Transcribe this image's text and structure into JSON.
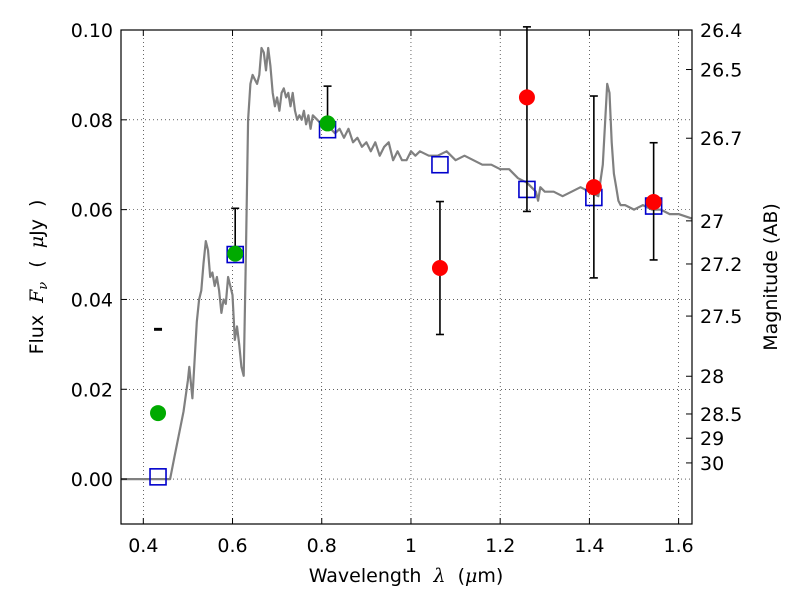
{
  "chart_data": {
    "type": "scatter",
    "title": "",
    "xlabel": "Wavelength",
    "xlabel_symbol": "λ",
    "xlabel_unit_open": "(",
    "xlabel_unit_mu": "μ",
    "xlabel_unit_rest": "m)",
    "ylabel_prefix": "Flux",
    "ylabel_symbol": "F",
    "ylabel_subscript": "ν",
    "ylabel_unit_open": "(",
    "ylabel_unit_mu": "μ",
    "ylabel_unit_rest": "Jy",
    "ylabel_unit_close": ")",
    "y2label": "Magnitude (AB)",
    "xlim": [
      0.35,
      1.63
    ],
    "ylim": [
      -0.01,
      0.1
    ],
    "grid": true,
    "x_ticks": [
      0.4,
      0.6,
      0.8,
      1.0,
      1.2,
      1.4,
      1.6
    ],
    "x_tick_labels": [
      "0.4",
      "0.6",
      "0.8",
      "1",
      "1.2",
      "1.4",
      "1.6"
    ],
    "y_ticks": [
      0.0,
      0.02,
      0.04,
      0.06,
      0.08,
      0.1
    ],
    "y_tick_labels": [
      "0.00",
      "0.02",
      "0.04",
      "0.06",
      "0.08",
      "0.10"
    ],
    "y2_ticks": [
      {
        "label": "26.4",
        "flux": 0.1
      },
      {
        "label": "26.5",
        "flux": 0.0912
      },
      {
        "label": "26.7",
        "flux": 0.0759
      },
      {
        "label": "27",
        "flux": 0.0575
      },
      {
        "label": "27.2",
        "flux": 0.0479
      },
      {
        "label": "27.5",
        "flux": 0.0363
      },
      {
        "label": "28",
        "flux": 0.0229
      },
      {
        "label": "28.5",
        "flux": 0.0145
      },
      {
        "label": "29",
        "flux": 0.0091
      },
      {
        "label": "30",
        "flux": 0.0036
      }
    ],
    "series": [
      {
        "type": "line",
        "color": "#808080",
        "x": [
          0.35,
          0.46,
          0.47,
          0.49,
          0.5,
          0.503,
          0.51,
          0.52,
          0.525,
          0.53,
          0.535,
          0.54,
          0.545,
          0.55,
          0.555,
          0.56,
          0.565,
          0.57,
          0.575,
          0.58,
          0.585,
          0.59,
          0.595,
          0.6,
          0.605,
          0.61,
          0.615,
          0.62,
          0.625,
          0.63,
          0.635,
          0.64,
          0.645,
          0.65,
          0.655,
          0.66,
          0.665,
          0.67,
          0.675,
          0.68,
          0.685,
          0.69,
          0.695,
          0.7,
          0.705,
          0.71,
          0.715,
          0.72,
          0.725,
          0.73,
          0.735,
          0.74,
          0.745,
          0.75,
          0.755,
          0.76,
          0.765,
          0.77,
          0.775,
          0.78,
          0.79,
          0.8,
          0.81,
          0.82,
          0.83,
          0.84,
          0.85,
          0.86,
          0.87,
          0.88,
          0.89,
          0.9,
          0.91,
          0.92,
          0.93,
          0.94,
          0.95,
          0.96,
          0.97,
          0.98,
          0.99,
          1.0,
          1.01,
          1.02,
          1.04,
          1.06,
          1.08,
          1.1,
          1.12,
          1.14,
          1.16,
          1.18,
          1.2,
          1.22,
          1.24,
          1.26,
          1.28,
          1.285,
          1.29,
          1.3,
          1.32,
          1.34,
          1.36,
          1.38,
          1.4,
          1.42,
          1.43,
          1.44,
          1.445,
          1.45,
          1.455,
          1.46,
          1.465,
          1.47,
          1.48,
          1.5,
          1.52,
          1.54,
          1.56,
          1.58,
          1.6,
          1.63
        ],
        "y": [
          0.0,
          0.0,
          0.005,
          0.015,
          0.022,
          0.025,
          0.018,
          0.035,
          0.04,
          0.042,
          0.048,
          0.053,
          0.051,
          0.045,
          0.046,
          0.043,
          0.045,
          0.042,
          0.037,
          0.04,
          0.039,
          0.045,
          0.043,
          0.041,
          0.031,
          0.034,
          0.03,
          0.025,
          0.023,
          0.05,
          0.08,
          0.088,
          0.09,
          0.089,
          0.088,
          0.09,
          0.096,
          0.095,
          0.091,
          0.096,
          0.092,
          0.086,
          0.083,
          0.085,
          0.082,
          0.086,
          0.087,
          0.085,
          0.086,
          0.083,
          0.086,
          0.082,
          0.08,
          0.081,
          0.08,
          0.082,
          0.079,
          0.081,
          0.078,
          0.081,
          0.08,
          0.079,
          0.078,
          0.078,
          0.077,
          0.078,
          0.076,
          0.078,
          0.075,
          0.076,
          0.074,
          0.075,
          0.073,
          0.075,
          0.072,
          0.074,
          0.075,
          0.071,
          0.073,
          0.071,
          0.071,
          0.073,
          0.072,
          0.073,
          0.072,
          0.072,
          0.073,
          0.071,
          0.072,
          0.071,
          0.07,
          0.07,
          0.069,
          0.069,
          0.067,
          0.066,
          0.064,
          0.062,
          0.065,
          0.064,
          0.064,
          0.063,
          0.064,
          0.065,
          0.064,
          0.063,
          0.07,
          0.088,
          0.086,
          0.075,
          0.068,
          0.065,
          0.062,
          0.061,
          0.061,
          0.06,
          0.061,
          0.06,
          0.06,
          0.059,
          0.059,
          0.058
        ]
      },
      {
        "name": "",
        "type": "errorbar",
        "marker": "circle",
        "color": "#00aa00",
        "x": [
          0.433,
          0.606,
          0.813
        ],
        "y": [
          0.0147,
          0.0502,
          0.0792
        ],
        "yerr_low": [
          0.0332,
          0.0502,
          0.0792
        ],
        "yerr_high": [
          0.0335,
          0.0603,
          0.0875
        ]
      },
      {
        "name": "",
        "type": "errorbar",
        "marker": "circle",
        "color": "#ff0000",
        "x": [
          1.065,
          1.26,
          1.41,
          1.544
        ],
        "y": [
          0.047,
          0.085,
          0.065,
          0.0617
        ],
        "yerr_low": [
          0.0322,
          0.0596,
          0.0448,
          0.0488
        ],
        "yerr_high": [
          0.0618,
          0.1007,
          0.0853,
          0.0749
        ]
      },
      {
        "name": "",
        "type": "scatter",
        "marker": "square-open",
        "color": "#0000cc",
        "x": [
          0.433,
          0.606,
          0.813,
          1.065,
          1.26,
          1.41,
          1.544
        ],
        "y": [
          0.0005,
          0.05,
          0.0778,
          0.07,
          0.0645,
          0.0627,
          0.0608
        ]
      }
    ]
  }
}
